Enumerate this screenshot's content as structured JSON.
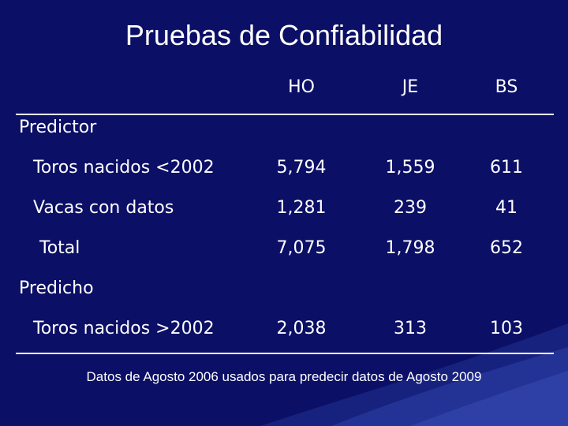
{
  "title": "Pruebas de Confiabilidad",
  "columns": [
    "HO",
    "JE",
    "BS"
  ],
  "sections": [
    {
      "label": "Predictor",
      "rows": [
        {
          "label": "Toros nacidos <2002",
          "values": [
            "5,794",
            "1,559",
            "611"
          ]
        },
        {
          "label": "Vacas con datos",
          "values": [
            "1,281",
            "239",
            "41"
          ]
        },
        {
          "label": "Total",
          "values": [
            "7,075",
            "1,798",
            "652"
          ]
        }
      ]
    },
    {
      "label": "Predicho",
      "rows": [
        {
          "label": "Toros nacidos >2002",
          "values": [
            "2,038",
            "313",
            "103"
          ]
        }
      ]
    }
  ],
  "footnote": "Datos de Agosto 2006 usados para predecir datos de Agosto 2009",
  "colors": {
    "background": "#0b0f66",
    "text": "#ffffff",
    "accent": "#2a3aa0"
  }
}
